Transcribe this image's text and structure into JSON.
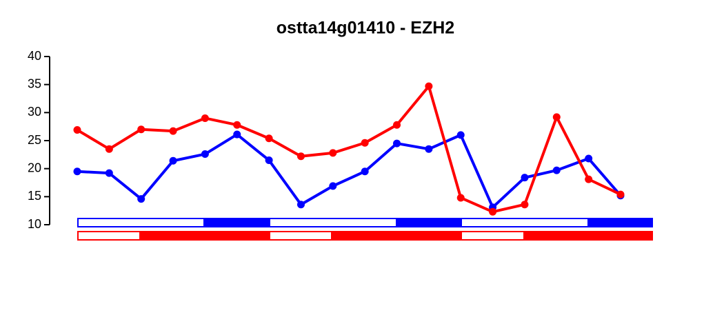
{
  "chart_data": {
    "type": "line",
    "title": "ostta14g01410 - EZH2",
    "categories": [
      null,
      null,
      null,
      null,
      null,
      null,
      null,
      null,
      null,
      null,
      null,
      null,
      null,
      null,
      null,
      null,
      null,
      null
    ],
    "series": [
      {
        "color": "#0000ff",
        "values": [
          19.5,
          19.2,
          14.6,
          21.4,
          22.6,
          26.1,
          21.5,
          13.6,
          16.9,
          19.5,
          24.5,
          23.5,
          26.0,
          13.1,
          18.4,
          19.7,
          21.8,
          15.2
        ]
      },
      {
        "color": "#ff0000",
        "values": [
          26.9,
          23.5,
          27.0,
          26.7,
          29.0,
          27.8,
          25.4,
          22.2,
          22.8,
          24.6,
          27.8,
          34.7,
          14.8,
          12.3,
          13.6,
          29.2,
          18.1,
          15.4
        ]
      }
    ],
    "ylim": [
      10,
      40
    ],
    "yticks": [
      10,
      15,
      20,
      25,
      30,
      35,
      40
    ]
  }
}
